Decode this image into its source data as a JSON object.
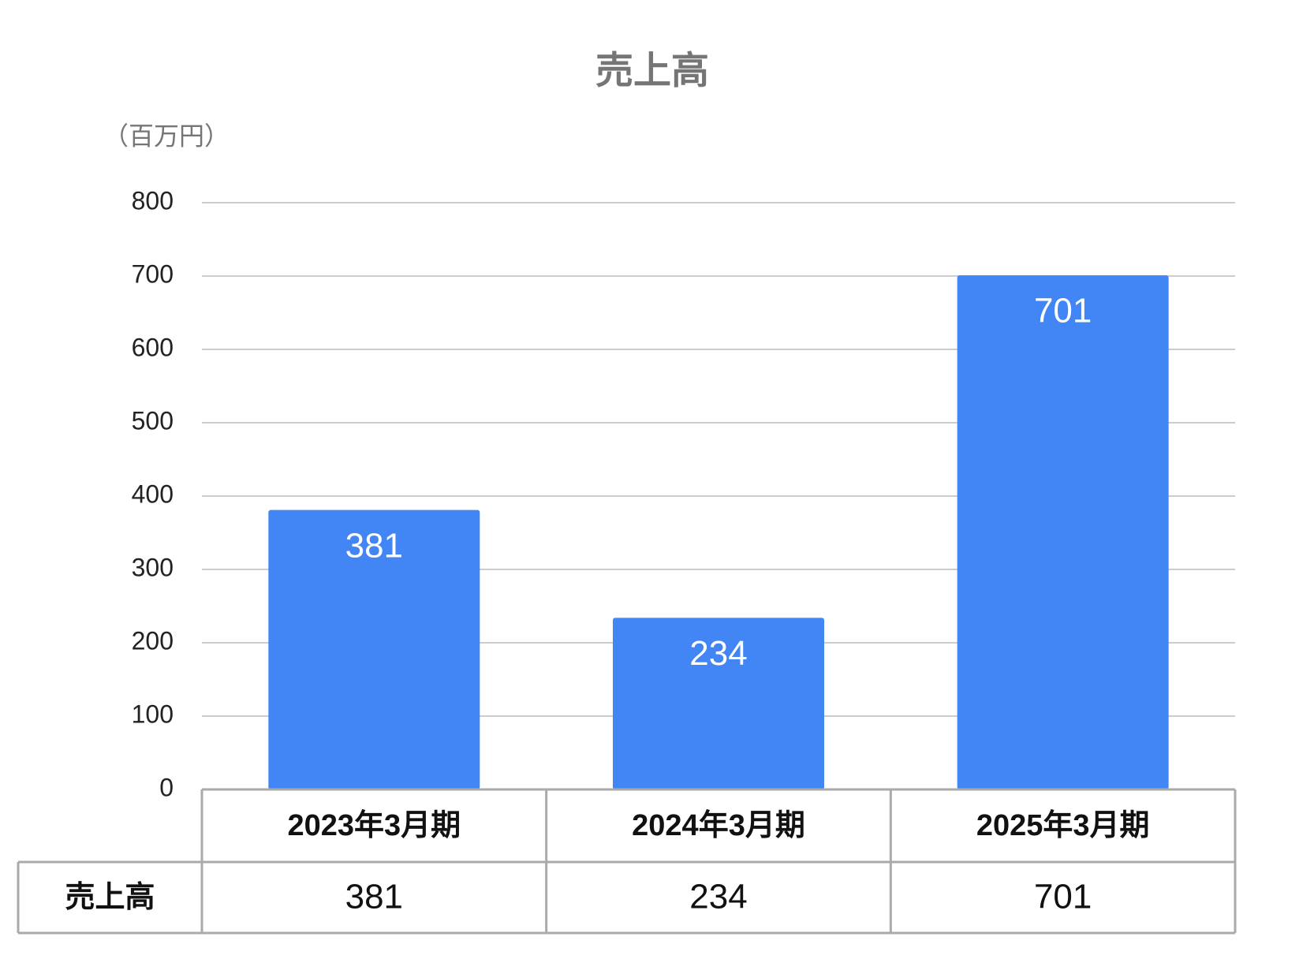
{
  "chart_data": {
    "type": "bar",
    "title": "売上高",
    "y_label": "（百万円）",
    "categories": [
      "2023年3月期",
      "2024年3月期",
      "2025年3月期"
    ],
    "series": [
      {
        "name": "売上高",
        "color": "#4285f4",
        "values": [
          381,
          234,
          701
        ]
      }
    ],
    "ylim": [
      0,
      800
    ],
    "yticks": [
      0,
      100,
      200,
      300,
      400,
      500,
      600,
      700,
      800
    ],
    "grid": true,
    "data_labels": true,
    "data_table": true
  }
}
